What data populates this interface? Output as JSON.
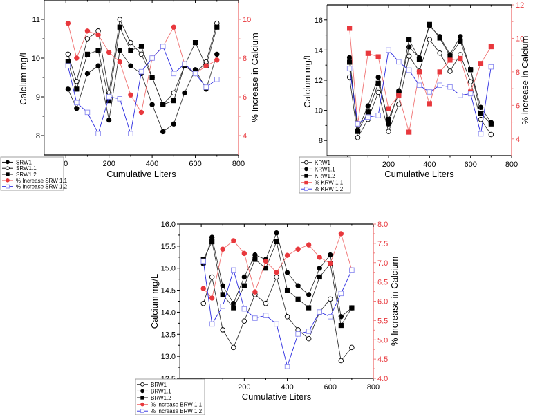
{
  "chart_data": [
    {
      "id": "srw",
      "type": "line",
      "xlabel": "Cumulative Liters",
      "ylabel": "Calcium mg/L",
      "y2label": "% Increase in Calcium",
      "xlim": [
        -100,
        800
      ],
      "ylim": [
        7.5,
        11.5
      ],
      "y2lim": [
        3,
        11
      ],
      "xticks": [
        0,
        200,
        400,
        600,
        800
      ],
      "yticks": [
        8,
        9,
        10,
        11
      ],
      "y2ticks": [
        4,
        6,
        8,
        10
      ],
      "grid": false,
      "legend_position": "bottom-left",
      "x": [
        10,
        50,
        100,
        150,
        200,
        250,
        300,
        350,
        400,
        450,
        500,
        550,
        600,
        650,
        700
      ],
      "series": [
        {
          "name": "SRW1",
          "axis": "left",
          "marker": "filled-circle",
          "color": "#000000",
          "values": [
            9.2,
            8.7,
            9.6,
            9.8,
            8.4,
            10.2,
            9.8,
            9.6,
            8.8,
            8.1,
            8.3,
            9.1,
            9.7,
            9.2,
            10.1
          ]
        },
        {
          "name": "SRW1.1",
          "axis": "left",
          "marker": "open-circle",
          "color": "#000000",
          "values": [
            10.1,
            9.4,
            10.5,
            10.7,
            9.1,
            11.0,
            10.4,
            10.1,
            9.5,
            8.8,
            9.1,
            9.8,
            9.6,
            9.9,
            10.9
          ]
        },
        {
          "name": "SRW1.2",
          "axis": "left",
          "marker": "filled-square",
          "color": "#000000",
          "values": [
            9.9,
            9.2,
            10.1,
            10.2,
            8.9,
            10.8,
            10.2,
            10.3,
            9.5,
            8.8,
            8.9,
            9.8,
            10.4,
            9.8,
            10.8
          ]
        },
        {
          "name": "% Increase SRW 1.1",
          "axis": "right",
          "marker": "filled-circle",
          "color": "#e8383d",
          "x": [
            10,
            50,
            100,
            150,
            200,
            250,
            300,
            350,
            400,
            450,
            500,
            550,
            600,
            650,
            700
          ],
          "values": [
            9.8,
            8.0,
            9.4,
            9.2,
            8.3,
            7.8,
            6.1,
            5.2,
            8.0,
            8.6,
            9.6,
            7.7,
            7.2,
            7.6,
            7.9
          ]
        },
        {
          "name": "% Increase SRW 1.2",
          "axis": "right",
          "marker": "open-square",
          "color": "#2929e0",
          "values": [
            7.6,
            5.7,
            5.2,
            4.1,
            6.0,
            5.9,
            4.1,
            7.3,
            8.0,
            8.6,
            7.2,
            7.7,
            7.2,
            6.5,
            6.9
          ]
        }
      ]
    },
    {
      "id": "krw",
      "type": "line",
      "xlabel": "Cumulative Liters",
      "ylabel": "Calcium mg/L",
      "y2label": "% increase in Calcium",
      "xlim": [
        -100,
        800
      ],
      "ylim": [
        7,
        17
      ],
      "y2lim": [
        3,
        12
      ],
      "xticks": [
        0,
        200,
        400,
        600,
        800
      ],
      "yticks": [
        8,
        10,
        12,
        14,
        16
      ],
      "y2ticks": [
        4,
        6,
        8,
        10,
        12
      ],
      "grid": false,
      "legend_position": "bottom-left",
      "x": [
        10,
        50,
        100,
        150,
        200,
        250,
        300,
        350,
        400,
        450,
        500,
        550,
        600,
        650,
        700
      ],
      "series": [
        {
          "name": "KRW1",
          "axis": "left",
          "marker": "open-circle",
          "color": "#000000",
          "values": [
            12.2,
            8.2,
            9.4,
            11.2,
            8.6,
            10.4,
            13.6,
            12.6,
            14.7,
            13.8,
            12.6,
            13.7,
            11.9,
            9.4,
            8.4
          ]
        },
        {
          "name": "KRW1.1",
          "axis": "left",
          "marker": "filled-circle",
          "color": "#000000",
          "values": [
            13.5,
            8.7,
            10.3,
            12.2,
            9.1,
            11.3,
            14.2,
            13.5,
            15.6,
            14.9,
            13.7,
            14.9,
            12.7,
            10.2,
            9.2
          ]
        },
        {
          "name": "KRW1.2",
          "axis": "left",
          "marker": "filled-square",
          "color": "#000000",
          "values": [
            13.2,
            8.6,
            9.9,
            11.8,
            9.4,
            11.1,
            14.7,
            13.4,
            15.7,
            14.8,
            13.6,
            14.6,
            12.7,
            9.8,
            9.1
          ]
        },
        {
          "name": "% KRW 1.1",
          "axis": "right",
          "marker": "filled-square",
          "color": "#e8383d",
          "values": [
            10.6,
            4.9,
            9.1,
            8.9,
            5.8,
            6.6,
            4.4,
            8.0,
            6.1,
            8.0,
            8.7,
            8.8,
            6.8,
            8.5,
            9.5
          ]
        },
        {
          "name": "% KRW 1.2",
          "axis": "right",
          "marker": "open-square",
          "color": "#2929e0",
          "values": [
            8.2,
            4.9,
            5.3,
            5.4,
            9.3,
            8.6,
            8.1,
            7.2,
            6.8,
            7.2,
            7.1,
            6.6,
            6.7,
            4.3,
            8.3
          ]
        }
      ]
    },
    {
      "id": "brw",
      "type": "line",
      "xlabel": "Cumulative Liters",
      "ylabel": "Calcium mg/L",
      "y2label": "% Increase in Calcium",
      "xlim": [
        -100,
        800
      ],
      "ylim": [
        12.5,
        16.0
      ],
      "y2lim": [
        4.0,
        8.0
      ],
      "xticks": [
        0,
        200,
        400,
        600,
        800
      ],
      "yticks": [
        12.5,
        13.0,
        13.5,
        14.0,
        14.5,
        15.0,
        15.5,
        16.0
      ],
      "ytick_labels": [
        "12.5",
        "13.0",
        "13.5",
        "14.0",
        "14.5",
        "15.0",
        "15.5",
        "16.0"
      ],
      "y2ticks": [
        4.0,
        4.5,
        5.0,
        5.5,
        6.0,
        6.5,
        7.0,
        7.5,
        8.0
      ],
      "y2tick_labels": [
        "4.0",
        "4.5",
        "5.0",
        "5.5",
        "6.0",
        "6.5",
        "7.0",
        "7.5",
        "8.0"
      ],
      "grid": false,
      "legend_position": "bottom-left",
      "x": [
        10,
        50,
        100,
        150,
        200,
        250,
        300,
        350,
        400,
        450,
        500,
        550,
        600,
        650,
        700
      ],
      "series": [
        {
          "name": "BRW1",
          "axis": "left",
          "marker": "open-circle",
          "color": "#000000",
          "values": [
            14.2,
            14.8,
            13.6,
            13.2,
            13.8,
            14.4,
            14.2,
            14.8,
            13.9,
            13.6,
            13.4,
            14.0,
            14.3,
            12.9,
            13.2
          ]
        },
        {
          "name": "BRW1.1",
          "axis": "left",
          "marker": "filled-circle",
          "color": "#000000",
          "values": [
            15.1,
            15.7,
            14.6,
            14.2,
            14.8,
            15.3,
            15.2,
            15.8,
            14.9,
            14.6,
            14.4,
            15.0,
            15.3,
            13.9,
            14.1
          ]
        },
        {
          "name": "BRW1.2",
          "axis": "left",
          "marker": "filled-square",
          "color": "#000000",
          "values": [
            15.2,
            15.6,
            14.4,
            14.1,
            14.6,
            15.2,
            15.0,
            15.6,
            14.5,
            14.3,
            14.1,
            14.8,
            15.1,
            13.7,
            14.1
          ]
        },
        {
          "name": "% Increase BRW 1.1",
          "axis": "right",
          "marker": "filled-circle",
          "color": "#e8383d",
          "values": [
            6.33,
            6.08,
            7.35,
            7.57,
            7.24,
            6.24,
            7.04,
            6.75,
            7.19,
            7.35,
            7.46,
            7.14,
            6.98,
            7.75,
            6.81
          ]
        },
        {
          "name": "% Increase BRW 1.2",
          "axis": "right",
          "marker": "open-square",
          "color": "#2929e0",
          "values": [
            7.04,
            5.41,
            5.87,
            6.81,
            5.8,
            5.56,
            5.63,
            5.41,
            4.31,
            5.15,
            5.22,
            5.72,
            5.6,
            6.2,
            6.81
          ]
        }
      ]
    }
  ]
}
